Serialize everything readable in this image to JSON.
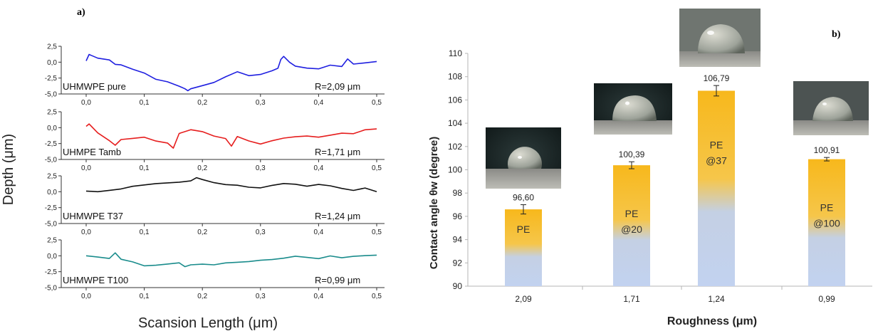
{
  "panel_a_label": "a)",
  "panel_b_label": "b)",
  "chart_data": [
    {
      "type": "line",
      "ylabel": "Depth (μm)",
      "xlabel": "Scansion Length (μm)",
      "xlim": [
        0.0,
        0.5
      ],
      "ylim": [
        -5.0,
        2.5
      ],
      "x_ticks": [
        "0,0",
        "0,1",
        "0,2",
        "0,3",
        "0,4",
        "0,5"
      ],
      "y_ticks": [
        "2,5",
        "0,0",
        "-2,5",
        "-5,0"
      ],
      "series": [
        {
          "name": "UHMWPE pure",
          "roughness": "R=2,09 μm",
          "color": "#1f1fe0",
          "x": [
            0,
            0.005,
            0.02,
            0.04,
            0.05,
            0.06,
            0.08,
            0.1,
            0.12,
            0.14,
            0.16,
            0.17,
            0.175,
            0.18,
            0.2,
            0.22,
            0.24,
            0.26,
            0.28,
            0.3,
            0.32,
            0.33,
            0.335,
            0.34,
            0.35,
            0.36,
            0.38,
            0.4,
            0.42,
            0.44,
            0.45,
            0.46,
            0.48,
            0.5
          ],
          "y": [
            0.2,
            1.2,
            0.6,
            0.3,
            -0.4,
            -0.5,
            -1.2,
            -1.8,
            -2.8,
            -3.2,
            -3.9,
            -4.3,
            -4.6,
            -4.3,
            -3.8,
            -3.3,
            -2.4,
            -1.6,
            -2.2,
            -2.0,
            -1.4,
            -1.0,
            0.4,
            0.9,
            0.0,
            -0.6,
            -0.9,
            -1.0,
            -0.4,
            -0.6,
            0.6,
            -0.2,
            0.0,
            0.1
          ]
        },
        {
          "name": "UHMPE Tamb",
          "roughness": "R=1,71 μm",
          "color": "#e61e1e",
          "x": [
            0,
            0.005,
            0.02,
            0.04,
            0.05,
            0.06,
            0.08,
            0.1,
            0.12,
            0.14,
            0.15,
            0.16,
            0.18,
            0.2,
            0.22,
            0.24,
            0.25,
            0.26,
            0.28,
            0.3,
            0.32,
            0.34,
            0.36,
            0.38,
            0.4,
            0.42,
            0.44,
            0.46,
            0.48,
            0.5
          ],
          "y": [
            0.2,
            0.6,
            -0.8,
            -2.0,
            -2.7,
            -1.8,
            -1.6,
            -1.4,
            -2.0,
            -2.3,
            -3.1,
            -0.8,
            -0.2,
            -0.5,
            -1.2,
            -1.6,
            -2.8,
            -1.3,
            -2.0,
            -2.5,
            -2.0,
            -1.6,
            -1.4,
            -1.3,
            -1.5,
            -1.2,
            -0.9,
            -1.0,
            -0.4,
            -0.2
          ]
        },
        {
          "name": "UHMWPE T37",
          "roughness": "R=1,24 μm",
          "color": "#111111",
          "x": [
            0,
            0.02,
            0.04,
            0.06,
            0.08,
            0.1,
            0.12,
            0.14,
            0.16,
            0.18,
            0.19,
            0.2,
            0.22,
            0.24,
            0.26,
            0.28,
            0.3,
            0.32,
            0.34,
            0.36,
            0.38,
            0.4,
            0.42,
            0.44,
            0.46,
            0.48,
            0.5
          ],
          "y": [
            0.1,
            0.0,
            0.2,
            0.4,
            0.8,
            1.0,
            1.2,
            1.3,
            1.4,
            1.6,
            2.1,
            1.8,
            1.3,
            1.0,
            0.9,
            0.6,
            0.5,
            0.9,
            1.2,
            1.1,
            0.8,
            1.1,
            0.9,
            0.5,
            0.2,
            0.6,
            0.0
          ]
        },
        {
          "name": "UHMWPE T100",
          "roughness": "R=0,99 μm",
          "color": "#1a8c8c",
          "x": [
            0,
            0.02,
            0.04,
            0.05,
            0.06,
            0.08,
            0.1,
            0.12,
            0.14,
            0.16,
            0.17,
            0.18,
            0.2,
            0.22,
            0.24,
            0.26,
            0.28,
            0.3,
            0.32,
            0.34,
            0.36,
            0.38,
            0.4,
            0.42,
            0.44,
            0.46,
            0.48,
            0.5
          ],
          "y": [
            0.0,
            -0.2,
            -0.4,
            0.5,
            -0.5,
            -0.9,
            -1.5,
            -1.4,
            -1.2,
            -1.0,
            -1.6,
            -1.3,
            -1.2,
            -1.3,
            -1.0,
            -0.9,
            -0.8,
            -0.6,
            -0.5,
            -0.3,
            0.0,
            -0.2,
            -0.4,
            0.0,
            -0.3,
            -0.1,
            0.0,
            0.1
          ]
        }
      ]
    },
    {
      "type": "bar",
      "xlabel": "Roughness (μm)",
      "ylabel": "Contact angle θw (degree)",
      "ylim": [
        90,
        110
      ],
      "y_ticks": [
        "90",
        "92",
        "94",
        "96",
        "98",
        "100",
        "102",
        "104",
        "106",
        "108",
        "110"
      ],
      "categories": [
        "2,09",
        "1,71",
        "1,24",
        "0,99"
      ],
      "values": [
        96.6,
        100.39,
        106.79,
        100.91
      ],
      "errors": [
        0.4,
        0.3,
        0.45,
        0.15
      ],
      "value_labels": [
        "96,60",
        "100,39",
        "106,79",
        "100,91"
      ],
      "bar_labels": [
        [
          "PE"
        ],
        [
          "PE",
          "@20"
        ],
        [
          "PE",
          "@37"
        ],
        [
          "PE",
          "@100"
        ]
      ],
      "bar_gradient": [
        "#f7b81c",
        "#b4c8ee"
      ]
    }
  ]
}
